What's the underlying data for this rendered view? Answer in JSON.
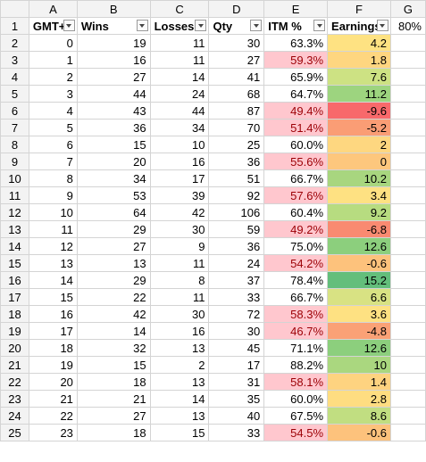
{
  "columns": [
    "A",
    "B",
    "C",
    "D",
    "E",
    "F",
    "G"
  ],
  "header_row": {
    "row_number": "1",
    "cells": [
      "GMT+1",
      "Wins",
      "Losses",
      "Qty",
      "ITM %",
      "Earnings"
    ],
    "g_value": "80%"
  },
  "rows": [
    {
      "n": "2",
      "gmt": "0",
      "wins": "19",
      "losses": "11",
      "qty": "30",
      "itm": "63.3%",
      "itm_low": false,
      "earn": "4.2",
      "earn_color": "#fee282"
    },
    {
      "n": "3",
      "gmt": "1",
      "wins": "16",
      "losses": "11",
      "qty": "27",
      "itm": "59.3%",
      "itm_low": true,
      "earn": "1.8",
      "earn_color": "#fed680"
    },
    {
      "n": "4",
      "gmt": "2",
      "wins": "27",
      "losses": "14",
      "qty": "41",
      "itm": "65.9%",
      "itm_low": false,
      "earn": "7.6",
      "earn_color": "#cde283"
    },
    {
      "n": "5",
      "gmt": "3",
      "wins": "44",
      "losses": "24",
      "qty": "68",
      "itm": "64.7%",
      "itm_low": false,
      "earn": "11.2",
      "earn_color": "#9dd47f"
    },
    {
      "n": "6",
      "gmt": "4",
      "wins": "43",
      "losses": "44",
      "qty": "87",
      "itm": "49.4%",
      "itm_low": true,
      "earn": "-9.6",
      "earn_color": "#f8696b"
    },
    {
      "n": "7",
      "gmt": "5",
      "wins": "36",
      "losses": "34",
      "qty": "70",
      "itm": "51.4%",
      "itm_low": true,
      "earn": "-5.2",
      "earn_color": "#fa9d75"
    },
    {
      "n": "8",
      "gmt": "6",
      "wins": "15",
      "losses": "10",
      "qty": "25",
      "itm": "60.0%",
      "itm_low": false,
      "earn": "2",
      "earn_color": "#fed780"
    },
    {
      "n": "9",
      "gmt": "7",
      "wins": "20",
      "losses": "16",
      "qty": "36",
      "itm": "55.6%",
      "itm_low": true,
      "earn": "0",
      "earn_color": "#fdc77d"
    },
    {
      "n": "10",
      "gmt": "8",
      "wins": "34",
      "losses": "17",
      "qty": "51",
      "itm": "66.7%",
      "itm_low": false,
      "earn": "10.2",
      "earn_color": "#a8d67f"
    },
    {
      "n": "11",
      "gmt": "9",
      "wins": "53",
      "losses": "39",
      "qty": "92",
      "itm": "57.6%",
      "itm_low": true,
      "earn": "3.4",
      "earn_color": "#fee182"
    },
    {
      "n": "12",
      "gmt": "10",
      "wins": "64",
      "losses": "42",
      "qty": "106",
      "itm": "60.4%",
      "itm_low": false,
      "earn": "9.2",
      "earn_color": "#b7dc80"
    },
    {
      "n": "13",
      "gmt": "11",
      "wins": "29",
      "losses": "30",
      "qty": "59",
      "itm": "49.2%",
      "itm_low": true,
      "earn": "-6.8",
      "earn_color": "#f98a71"
    },
    {
      "n": "14",
      "gmt": "12",
      "wins": "27",
      "losses": "9",
      "qty": "36",
      "itm": "75.0%",
      "itm_low": false,
      "earn": "12.6",
      "earn_color": "#8ccf7d"
    },
    {
      "n": "15",
      "gmt": "13",
      "wins": "13",
      "losses": "11",
      "qty": "24",
      "itm": "54.2%",
      "itm_low": true,
      "earn": "-0.6",
      "earn_color": "#fdc27c"
    },
    {
      "n": "16",
      "gmt": "14",
      "wins": "29",
      "losses": "8",
      "qty": "37",
      "itm": "78.4%",
      "itm_low": false,
      "earn": "15.2",
      "earn_color": "#63be7b"
    },
    {
      "n": "17",
      "gmt": "15",
      "wins": "22",
      "losses": "11",
      "qty": "33",
      "itm": "66.7%",
      "itm_low": false,
      "earn": "6.6",
      "earn_color": "#d8e283"
    },
    {
      "n": "18",
      "gmt": "16",
      "wins": "42",
      "losses": "30",
      "qty": "72",
      "itm": "58.3%",
      "itm_low": true,
      "earn": "3.6",
      "earn_color": "#fee182"
    },
    {
      "n": "19",
      "gmt": "17",
      "wins": "14",
      "losses": "16",
      "qty": "30",
      "itm": "46.7%",
      "itm_low": true,
      "earn": "-4.8",
      "earn_color": "#faa176"
    },
    {
      "n": "20",
      "gmt": "18",
      "wins": "32",
      "losses": "13",
      "qty": "45",
      "itm": "71.1%",
      "itm_low": false,
      "earn": "12.6",
      "earn_color": "#8ccf7d"
    },
    {
      "n": "21",
      "gmt": "19",
      "wins": "15",
      "losses": "2",
      "qty": "17",
      "itm": "88.2%",
      "itm_low": false,
      "earn": "10",
      "earn_color": "#aad77f"
    },
    {
      "n": "22",
      "gmt": "20",
      "wins": "18",
      "losses": "13",
      "qty": "31",
      "itm": "58.1%",
      "itm_low": true,
      "earn": "1.4",
      "earn_color": "#fed380"
    },
    {
      "n": "23",
      "gmt": "21",
      "wins": "21",
      "losses": "14",
      "qty": "35",
      "itm": "60.0%",
      "itm_low": false,
      "earn": "2.8",
      "earn_color": "#fedd81"
    },
    {
      "n": "24",
      "gmt": "22",
      "wins": "27",
      "losses": "13",
      "qty": "40",
      "itm": "67.5%",
      "itm_low": false,
      "earn": "8.6",
      "earn_color": "#c1de81"
    },
    {
      "n": "25",
      "gmt": "23",
      "wins": "18",
      "losses": "15",
      "qty": "33",
      "itm": "54.5%",
      "itm_low": true,
      "earn": "-0.6",
      "earn_color": "#fdc27c"
    }
  ],
  "colors": {
    "itm_low_fill": "#ffc7ce",
    "itm_low_text": "#9c0006",
    "header_bg": "#f3f3f3",
    "gridline": "#d4d4d4"
  }
}
